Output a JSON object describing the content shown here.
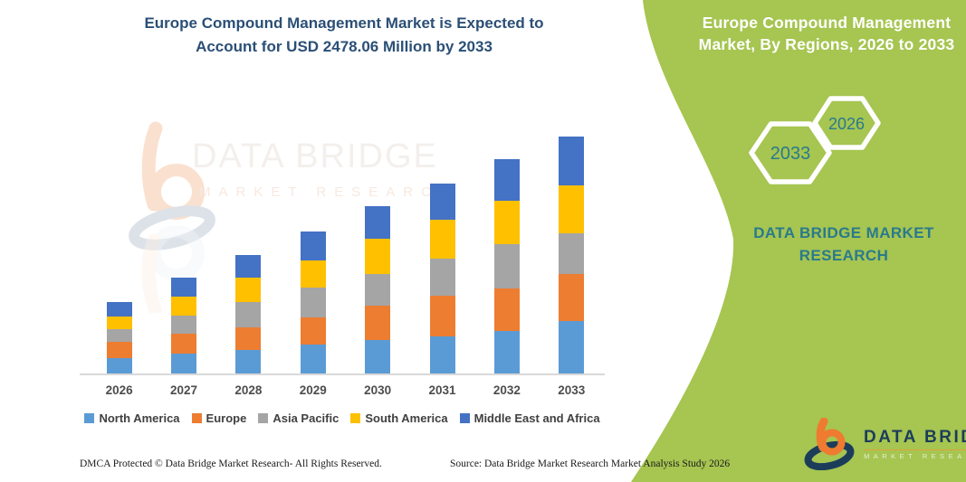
{
  "colors": {
    "green": "#A6C551",
    "teal": "#2A7A8C",
    "navy": "#2B4F76",
    "axis_gray": "#D9D9D9",
    "label_gray": "#4D4D4D",
    "legend_text": "#404040",
    "logo_navy": "#1C3D5A",
    "logo_orange": "#EE7B30",
    "underline_gold": "#E2A23C"
  },
  "header": {
    "title_line1": "Europe Compound Management Market is Expected to",
    "title_line2": "Account for USD 2478.06 Million by 2033"
  },
  "side_panel": {
    "title_line1": "Europe Compound Management",
    "title_line2": "Market, By Regions, 2026 to 2033",
    "hexagon_back_label": "2033",
    "hexagon_front_label": "2026",
    "brand_line1": "DATA BRIDGE MARKET",
    "brand_line2": "RESEARCH"
  },
  "watermark": {
    "line1": "DATA BRIDGE",
    "line2": "MARKET RESEARCH"
  },
  "logo": {
    "name": "DATA BRIDGE",
    "subtitle": "MARKET RESEARCH"
  },
  "footer": {
    "left": "DMCA Protected © Data Bridge Market Research-  All Rights Reserved.",
    "right": "Source: Data Bridge Market Research  Market Analysis Study 2026"
  },
  "chart_data": {
    "type": "bar",
    "stacked": true,
    "title": "Europe Compound Management Market, By Regions, 2026 to 2033",
    "unit": "USD Million (values estimated from bar proportions; 2033 total labeled as 2478.06)",
    "categories": [
      "2026",
      "2027",
      "2028",
      "2029",
      "2030",
      "2031",
      "2032",
      "2033"
    ],
    "series": [
      {
        "name": "North America",
        "color": "#5B9BD5",
        "values": [
          160,
          206,
          244,
          299,
          347,
          386,
          441,
          545
        ]
      },
      {
        "name": "Europe",
        "color": "#ED7D31",
        "values": [
          168,
          208,
          236,
          282,
          365,
          422,
          451,
          490
        ]
      },
      {
        "name": "Asia Pacific",
        "color": "#A5A5A5",
        "values": [
          132,
          189,
          271,
          318,
          330,
          394,
          459,
          432
        ]
      },
      {
        "name": "South America",
        "color": "#FFC000",
        "values": [
          140,
          197,
          253,
          283,
          365,
          404,
          451,
          495
        ]
      },
      {
        "name": "Middle East and Africa",
        "color": "#4472C4",
        "values": [
          143,
          198,
          236,
          301,
          339,
          376,
          433,
          516.06
        ]
      }
    ],
    "estimated_totals": [
      743,
      998,
      1240,
      1483,
      1746,
      1982,
      2235,
      2478.06
    ],
    "ylim": [
      0,
      2550
    ],
    "xlabel": "",
    "ylabel": "",
    "gridlines": false,
    "y_axis_visible": false,
    "legend_position": "bottom"
  }
}
